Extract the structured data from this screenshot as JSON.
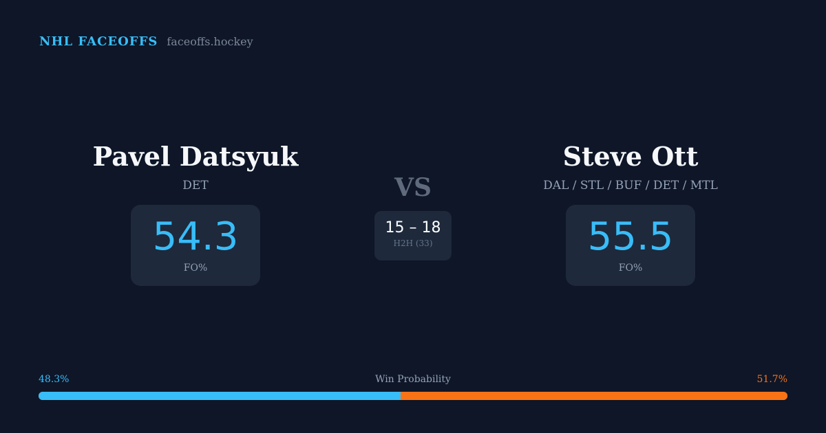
{
  "brand": {
    "name": "NHL FACEOFFS",
    "site": "faceoffs.hockey"
  },
  "players": [
    {
      "name": "Pavel Datsyuk",
      "teams": "DET",
      "fo_pct": "54.3",
      "fo_label": "FO%"
    },
    {
      "name": "Steve Ott",
      "teams": "DAL / STL / BUF / DET / MTL",
      "fo_pct": "55.5",
      "fo_label": "FO%"
    }
  ],
  "vs": "VS",
  "h2h": {
    "score": "15 – 18",
    "label": "H2H (33)"
  },
  "win_probability": {
    "label": "Win Probability",
    "left": "48.3%",
    "right": "51.7%",
    "left_value": 48.3,
    "right_value": 51.7,
    "left_color": "#38bdf8",
    "right_color": "#f97316"
  }
}
